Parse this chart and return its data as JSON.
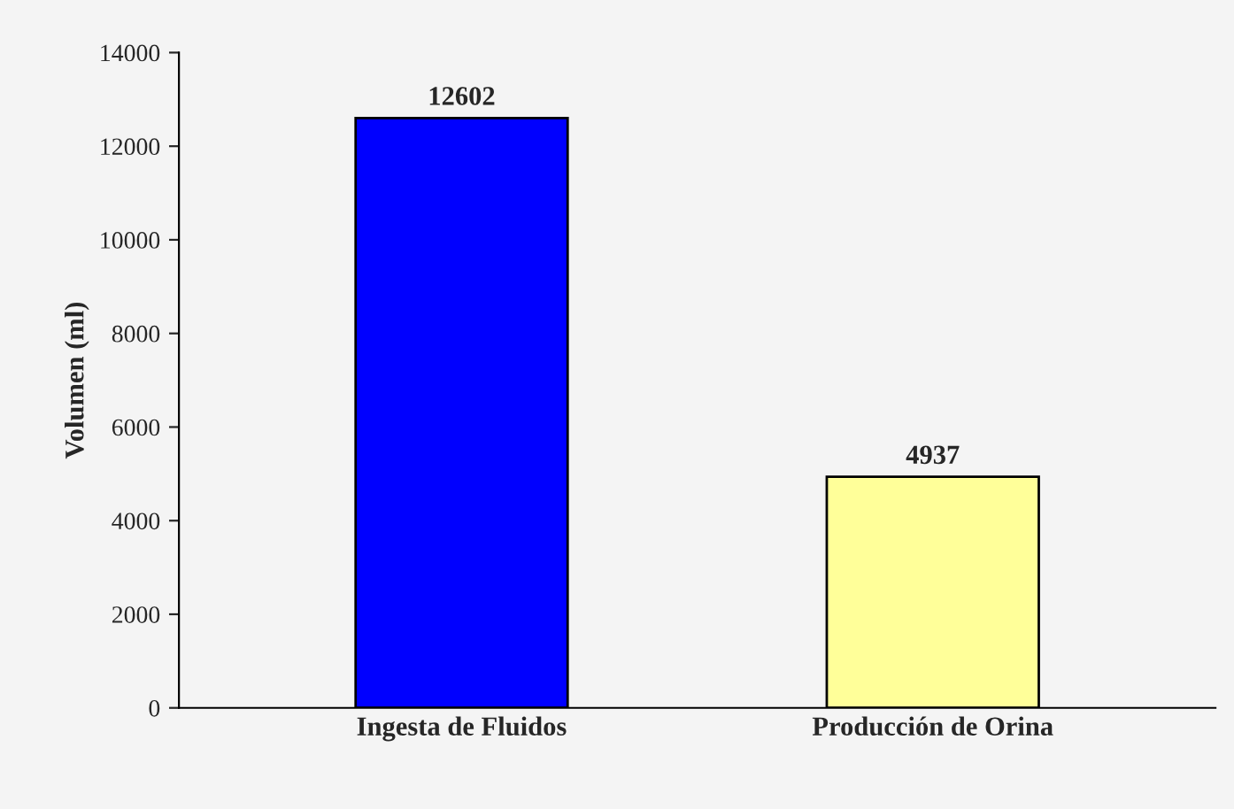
{
  "chart_data": {
    "type": "bar",
    "ylabel": "Volumen (ml)",
    "categories": [
      "Ingesta de Fluidos",
      "Producción de Orina"
    ],
    "values": [
      12602,
      4937
    ],
    "colors": [
      "#0000ff",
      "#ffff99"
    ],
    "ylim": [
      0,
      14000
    ],
    "yticks": [
      0,
      2000,
      4000,
      6000,
      8000,
      10000,
      12000,
      14000
    ],
    "data_labels": true,
    "grid": false,
    "legend": false
  }
}
